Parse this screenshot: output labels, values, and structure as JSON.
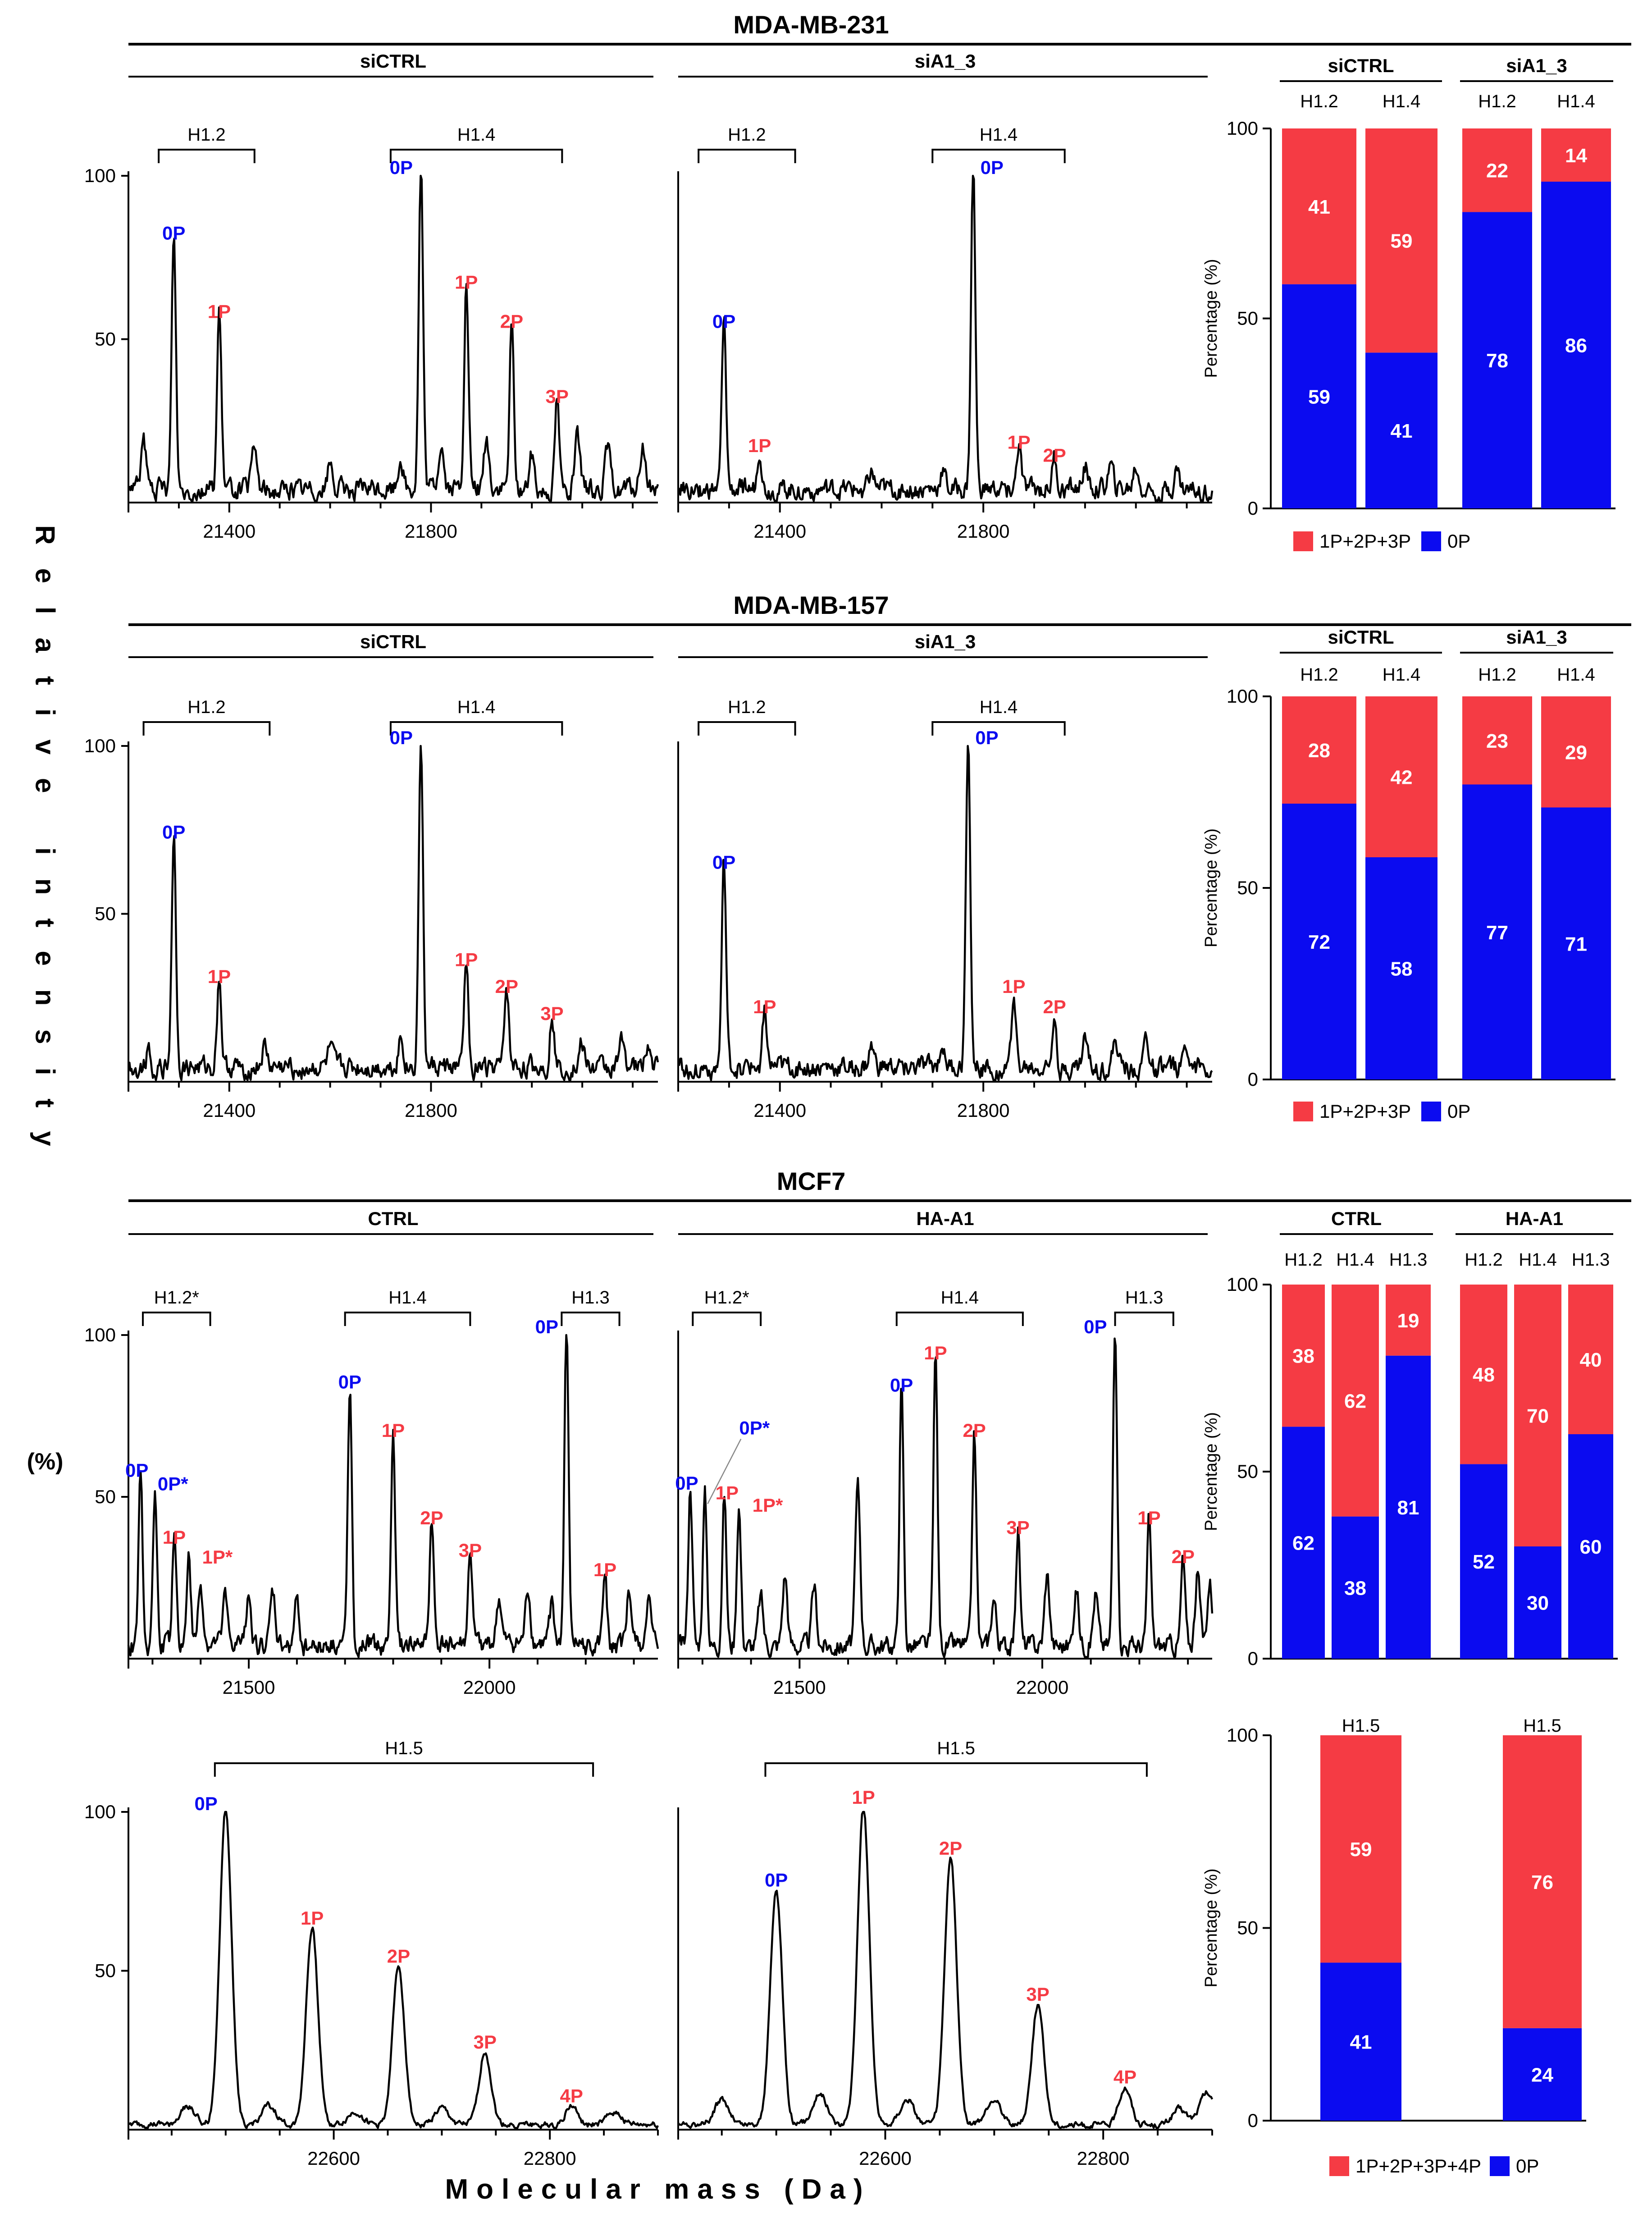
{
  "figure": {
    "y_axis_label": "Relative intensity",
    "y_axis_unit": "(%)",
    "x_axis_label": "Molecular mass (Da)",
    "bar_axis_label": "Percentage (%)"
  },
  "sections": [
    {
      "title": "MDA-MB-231"
    },
    {
      "title": "MDA-MB-157"
    },
    {
      "title": "MCF7"
    }
  ],
  "legends": [
    {
      "items": [
        {
          "label": "1P+2P+3P",
          "color": "#f53b44"
        },
        {
          "label": "0P",
          "color": "#0b0bf0"
        }
      ]
    },
    {
      "items": [
        {
          "label": "1P+2P+3P",
          "color": "#f53b44"
        },
        {
          "label": "0P",
          "color": "#0b0bf0"
        }
      ]
    },
    {
      "items": [
        {
          "label": "1P+2P+3P+4P",
          "color": "#f53b44"
        },
        {
          "label": "0P",
          "color": "#0b0bf0"
        }
      ]
    }
  ],
  "colors": {
    "unphosphorylated": "#0b0bf0",
    "phosphorylated": "#f53b44",
    "trace": "#000000"
  },
  "chart_data": [
    {
      "id": "s231a",
      "type": "line",
      "cell_line": "MDA-MB-231",
      "condition": "siCTRL",
      "xlim": [
        21200,
        22250
      ],
      "ylim": [
        0,
        100
      ],
      "xticks": [
        21400,
        21800
      ],
      "yticks": [
        50,
        100
      ],
      "groups": [
        {
          "name": "H1.2",
          "x0": 21260,
          "x1": 21450
        },
        {
          "name": "H1.4",
          "x0": 21720,
          "x1": 22060
        }
      ],
      "peaks": [
        {
          "label": "0P",
          "x": 21290,
          "y": 78,
          "color": "blue"
        },
        {
          "label": "1P",
          "x": 21380,
          "y": 54,
          "color": "red"
        },
        {
          "label": "0P",
          "x": 21780,
          "y": 100,
          "color": "blue"
        },
        {
          "label": "1P",
          "x": 21870,
          "y": 63,
          "color": "red"
        },
        {
          "label": "2P",
          "x": 21960,
          "y": 51,
          "color": "red"
        },
        {
          "label": "3P",
          "x": 22050,
          "y": 28,
          "color": "red"
        }
      ],
      "minor": [
        [
          21230,
          14
        ],
        [
          21450,
          12
        ],
        [
          21600,
          8
        ],
        [
          21740,
          10
        ],
        [
          21820,
          14
        ],
        [
          21910,
          15
        ],
        [
          22000,
          11
        ],
        [
          22090,
          15
        ],
        [
          22150,
          12
        ],
        [
          22220,
          13
        ]
      ]
    },
    {
      "id": "s231b",
      "type": "line",
      "cell_line": "MDA-MB-231",
      "condition": "siA1_3",
      "xlim": [
        21200,
        22250
      ],
      "ylim": [
        0,
        100
      ],
      "xticks": [
        21400,
        21800
      ],
      "yticks": [],
      "groups": [
        {
          "name": "H1.2",
          "x0": 21240,
          "x1": 21430
        },
        {
          "name": "H1.4",
          "x0": 21700,
          "x1": 21960
        }
      ],
      "peaks": [
        {
          "label": "0P",
          "x": 21290,
          "y": 51,
          "color": "blue"
        },
        {
          "label": "1P",
          "x": 21360,
          "y": 13,
          "color": "red"
        },
        {
          "label": "0P",
          "x": 21780,
          "y": 100,
          "color": "blue"
        },
        {
          "label": "1P",
          "x": 21870,
          "y": 14,
          "color": "red"
        },
        {
          "label": "2P",
          "x": 21940,
          "y": 10,
          "color": "red"
        }
      ],
      "minor": [
        [
          21580,
          5
        ],
        [
          21720,
          6
        ],
        [
          22000,
          8
        ],
        [
          22050,
          7
        ],
        [
          22100,
          7
        ],
        [
          22180,
          6
        ]
      ]
    },
    {
      "id": "s157a",
      "type": "line",
      "cell_line": "MDA-MB-157",
      "condition": "siCTRL",
      "xlim": [
        21200,
        22250
      ],
      "ylim": [
        0,
        100
      ],
      "xticks": [
        21400,
        21800
      ],
      "yticks": [
        50,
        100
      ],
      "groups": [
        {
          "name": "H1.2",
          "x0": 21230,
          "x1": 21480
        },
        {
          "name": "H1.4",
          "x0": 21720,
          "x1": 22060
        }
      ],
      "peaks": [
        {
          "label": "0P",
          "x": 21290,
          "y": 70,
          "color": "blue"
        },
        {
          "label": "1P",
          "x": 21380,
          "y": 27,
          "color": "red"
        },
        {
          "label": "0P",
          "x": 21780,
          "y": 100,
          "color": "blue"
        },
        {
          "label": "1P",
          "x": 21870,
          "y": 32,
          "color": "red"
        },
        {
          "label": "2P",
          "x": 21950,
          "y": 24,
          "color": "red"
        },
        {
          "label": "3P",
          "x": 22040,
          "y": 16,
          "color": "red"
        }
      ],
      "minor": [
        [
          21240,
          6
        ],
        [
          21470,
          6
        ],
        [
          21600,
          5
        ],
        [
          21740,
          9
        ],
        [
          22100,
          8
        ],
        [
          22180,
          9
        ],
        [
          22230,
          8
        ]
      ]
    },
    {
      "id": "s157b",
      "type": "line",
      "cell_line": "MDA-MB-157",
      "condition": "siA1_3",
      "xlim": [
        21200,
        22250
      ],
      "ylim": [
        0,
        100
      ],
      "xticks": [
        21400,
        21800
      ],
      "yticks": [],
      "groups": [
        {
          "name": "H1.2",
          "x0": 21240,
          "x1": 21430
        },
        {
          "name": "H1.4",
          "x0": 21700,
          "x1": 21960
        }
      ],
      "peaks": [
        {
          "label": "0P",
          "x": 21290,
          "y": 61,
          "color": "blue"
        },
        {
          "label": "1P",
          "x": 21370,
          "y": 18,
          "color": "red"
        },
        {
          "label": "0P",
          "x": 21770,
          "y": 100,
          "color": "blue"
        },
        {
          "label": "1P",
          "x": 21860,
          "y": 24,
          "color": "red"
        },
        {
          "label": "2P",
          "x": 21940,
          "y": 18,
          "color": "red"
        }
      ],
      "minor": [
        [
          21580,
          6
        ],
        [
          21720,
          8
        ],
        [
          22000,
          9
        ],
        [
          22060,
          8
        ],
        [
          22120,
          9
        ],
        [
          22200,
          8
        ]
      ]
    },
    {
      "id": "mcfa",
      "type": "line",
      "cell_line": "MCF7",
      "condition": "CTRL",
      "xlim": [
        21250,
        22350
      ],
      "ylim": [
        0,
        100
      ],
      "xticks": [
        21500,
        22000
      ],
      "yticks": [
        50,
        100
      ],
      "groups": [
        {
          "name": "H1.2*",
          "x0": 21280,
          "x1": 21420
        },
        {
          "name": "H1.4",
          "x0": 21700,
          "x1": 21960
        },
        {
          "name": "H1.3",
          "x0": 22150,
          "x1": 22270
        }
      ],
      "peaks": [
        {
          "label": "0P",
          "x": 21275,
          "y": 54,
          "color": "blue"
        },
        {
          "label": "0P*",
          "x": 21305,
          "y": 47,
          "color": "blue"
        },
        {
          "label": "1P",
          "x": 21345,
          "y": 33,
          "color": "red"
        },
        {
          "label": "1P*",
          "x": 21375,
          "y": 28,
          "color": "red"
        },
        {
          "label": "0P",
          "x": 21710,
          "y": 81,
          "color": "blue"
        },
        {
          "label": "1P",
          "x": 21800,
          "y": 66,
          "color": "red"
        },
        {
          "label": "2P",
          "x": 21880,
          "y": 39,
          "color": "red"
        },
        {
          "label": "3P",
          "x": 21960,
          "y": 29,
          "color": "red"
        },
        {
          "label": "0P",
          "x": 22160,
          "y": 100,
          "color": "blue"
        },
        {
          "label": "1P",
          "x": 22240,
          "y": 23,
          "color": "red"
        }
      ],
      "minor": [
        [
          21400,
          18
        ],
        [
          21450,
          15
        ],
        [
          21500,
          17
        ],
        [
          21550,
          16
        ],
        [
          21600,
          14
        ],
        [
          22020,
          14
        ],
        [
          22080,
          17
        ],
        [
          22130,
          13
        ],
        [
          22290,
          16
        ],
        [
          22330,
          14
        ]
      ]
    },
    {
      "id": "mcfb",
      "type": "line",
      "cell_line": "MCF7",
      "condition": "HA-A1",
      "xlim": [
        21250,
        22350
      ],
      "ylim": [
        0,
        100
      ],
      "xticks": [
        21500,
        22000
      ],
      "yticks": [],
      "groups": [
        {
          "name": "H1.2*",
          "x0": 21280,
          "x1": 21420
        },
        {
          "name": "H1.4",
          "x0": 21700,
          "x1": 21960
        },
        {
          "name": "H1.3",
          "x0": 22150,
          "x1": 22270
        }
      ],
      "peaks": [
        {
          "label": "0P",
          "x": 21275,
          "y": 50,
          "color": "blue"
        },
        {
          "label": "0P*",
          "x": 21305,
          "y": 47,
          "color": "blue"
        },
        {
          "label": "1P",
          "x": 21345,
          "y": 47,
          "color": "red"
        },
        {
          "label": "1P*",
          "x": 21375,
          "y": 44,
          "color": "red"
        },
        {
          "label": "0P",
          "x": 21710,
          "y": 80,
          "color": "blue"
        },
        {
          "label": "1P",
          "x": 21780,
          "y": 90,
          "color": "red"
        },
        {
          "label": "2P",
          "x": 21860,
          "y": 66,
          "color": "red"
        },
        {
          "label": "3P",
          "x": 21950,
          "y": 36,
          "color": "red"
        },
        {
          "label": "0P",
          "x": 22150,
          "y": 100,
          "color": "blue"
        },
        {
          "label": "1P",
          "x": 22220,
          "y": 39,
          "color": "red"
        },
        {
          "label": "2P",
          "x": 22290,
          "y": 27,
          "color": "red"
        }
      ],
      "minor": [
        [
          21420,
          15
        ],
        [
          21470,
          22
        ],
        [
          21530,
          18
        ],
        [
          21620,
          49
        ],
        [
          21900,
          15
        ],
        [
          22010,
          22
        ],
        [
          22070,
          18
        ],
        [
          22110,
          16
        ],
        [
          22320,
          22
        ],
        [
          22345,
          20
        ]
      ]
    },
    {
      "id": "h15a",
      "type": "line",
      "cell_line": "MCF7",
      "condition": "CTRL",
      "xlim": [
        22410,
        22900
      ],
      "ylim": [
        0,
        100
      ],
      "xticks": [
        22600,
        22800
      ],
      "yticks": [
        50,
        100
      ],
      "groups": [
        {
          "name": "H1.5",
          "x0": 22490,
          "x1": 22840
        }
      ],
      "peaks": [
        {
          "label": "0P",
          "x": 22500,
          "y": 100,
          "color": "blue"
        },
        {
          "label": "1P",
          "x": 22580,
          "y": 62,
          "color": "red"
        },
        {
          "label": "2P",
          "x": 22660,
          "y": 50,
          "color": "red"
        },
        {
          "label": "3P",
          "x": 22740,
          "y": 23,
          "color": "red"
        },
        {
          "label": "4P",
          "x": 22820,
          "y": 6,
          "color": "red"
        }
      ],
      "minor": [
        [
          22465,
          6
        ],
        [
          22540,
          6
        ],
        [
          22620,
          4
        ],
        [
          22700,
          5
        ],
        [
          22860,
          4
        ]
      ]
    },
    {
      "id": "h15b",
      "type": "line",
      "cell_line": "MCF7",
      "condition": "HA-A1",
      "xlim": [
        22410,
        22900
      ],
      "ylim": [
        0,
        100
      ],
      "xticks": [
        22600,
        22800
      ],
      "yticks": [],
      "groups": [
        {
          "name": "H1.5",
          "x0": 22490,
          "x1": 22840
        }
      ],
      "peaks": [
        {
          "label": "0P",
          "x": 22500,
          "y": 74,
          "color": "blue"
        },
        {
          "label": "1P",
          "x": 22580,
          "y": 100,
          "color": "red"
        },
        {
          "label": "2P",
          "x": 22660,
          "y": 84,
          "color": "red"
        },
        {
          "label": "3P",
          "x": 22740,
          "y": 38,
          "color": "red"
        },
        {
          "label": "4P",
          "x": 22820,
          "y": 12,
          "color": "red"
        }
      ],
      "minor": [
        [
          22450,
          8
        ],
        [
          22540,
          10
        ],
        [
          22620,
          8
        ],
        [
          22700,
          8
        ],
        [
          22870,
          5
        ],
        [
          22895,
          10
        ]
      ]
    },
    {
      "id": "bar231",
      "type": "bar",
      "stacked": true,
      "cell_line": "MDA-MB-231",
      "ylim": [
        0,
        100
      ],
      "yticks": [
        0,
        50,
        100
      ],
      "groups": [
        {
          "name": "siCTRL",
          "members": [
            "H1.2",
            "H1.4"
          ]
        },
        {
          "name": "siA1_3",
          "members": [
            "H1.2",
            "H1.4"
          ]
        }
      ],
      "series": [
        {
          "name": "0P",
          "values": [
            59,
            41,
            78,
            86
          ]
        },
        {
          "name": "1P+2P+3P",
          "values": [
            41,
            59,
            22,
            14
          ]
        }
      ]
    },
    {
      "id": "bar157",
      "type": "bar",
      "stacked": true,
      "cell_line": "MDA-MB-157",
      "ylim": [
        0,
        100
      ],
      "yticks": [
        0,
        50,
        100
      ],
      "groups": [
        {
          "name": "siCTRL",
          "members": [
            "H1.2",
            "H1.4"
          ]
        },
        {
          "name": "siA1_3",
          "members": [
            "H1.2",
            "H1.4"
          ]
        }
      ],
      "series": [
        {
          "name": "0P",
          "values": [
            72,
            58,
            77,
            71
          ]
        },
        {
          "name": "1P+2P+3P",
          "values": [
            28,
            42,
            23,
            29
          ]
        }
      ]
    },
    {
      "id": "barmcf",
      "type": "bar",
      "stacked": true,
      "cell_line": "MCF7",
      "ylim": [
        0,
        100
      ],
      "yticks": [
        0,
        50,
        100
      ],
      "groups": [
        {
          "name": "CTRL",
          "members": [
            "H1.2",
            "H1.4",
            "H1.3"
          ]
        },
        {
          "name": "HA-A1",
          "members": [
            "H1.2",
            "H1.4",
            "H1.3"
          ]
        }
      ],
      "series": [
        {
          "name": "0P",
          "values": [
            62,
            38,
            81,
            52,
            30,
            60
          ]
        },
        {
          "name": "1P+2P+3P",
          "values": [
            38,
            62,
            19,
            48,
            70,
            40
          ]
        }
      ]
    },
    {
      "id": "barh15",
      "type": "bar",
      "stacked": true,
      "cell_line": "MCF7",
      "ylim": [
        0,
        100
      ],
      "yticks": [
        0,
        50,
        100
      ],
      "groups": [
        {
          "name": "",
          "members": [
            "H1.5"
          ]
        },
        {
          "name": "",
          "members": [
            "H1.5"
          ]
        }
      ],
      "series": [
        {
          "name": "0P",
          "values": [
            41,
            24
          ]
        },
        {
          "name": "1P+2P+3P+4P",
          "values": [
            59,
            76
          ]
        }
      ]
    }
  ]
}
